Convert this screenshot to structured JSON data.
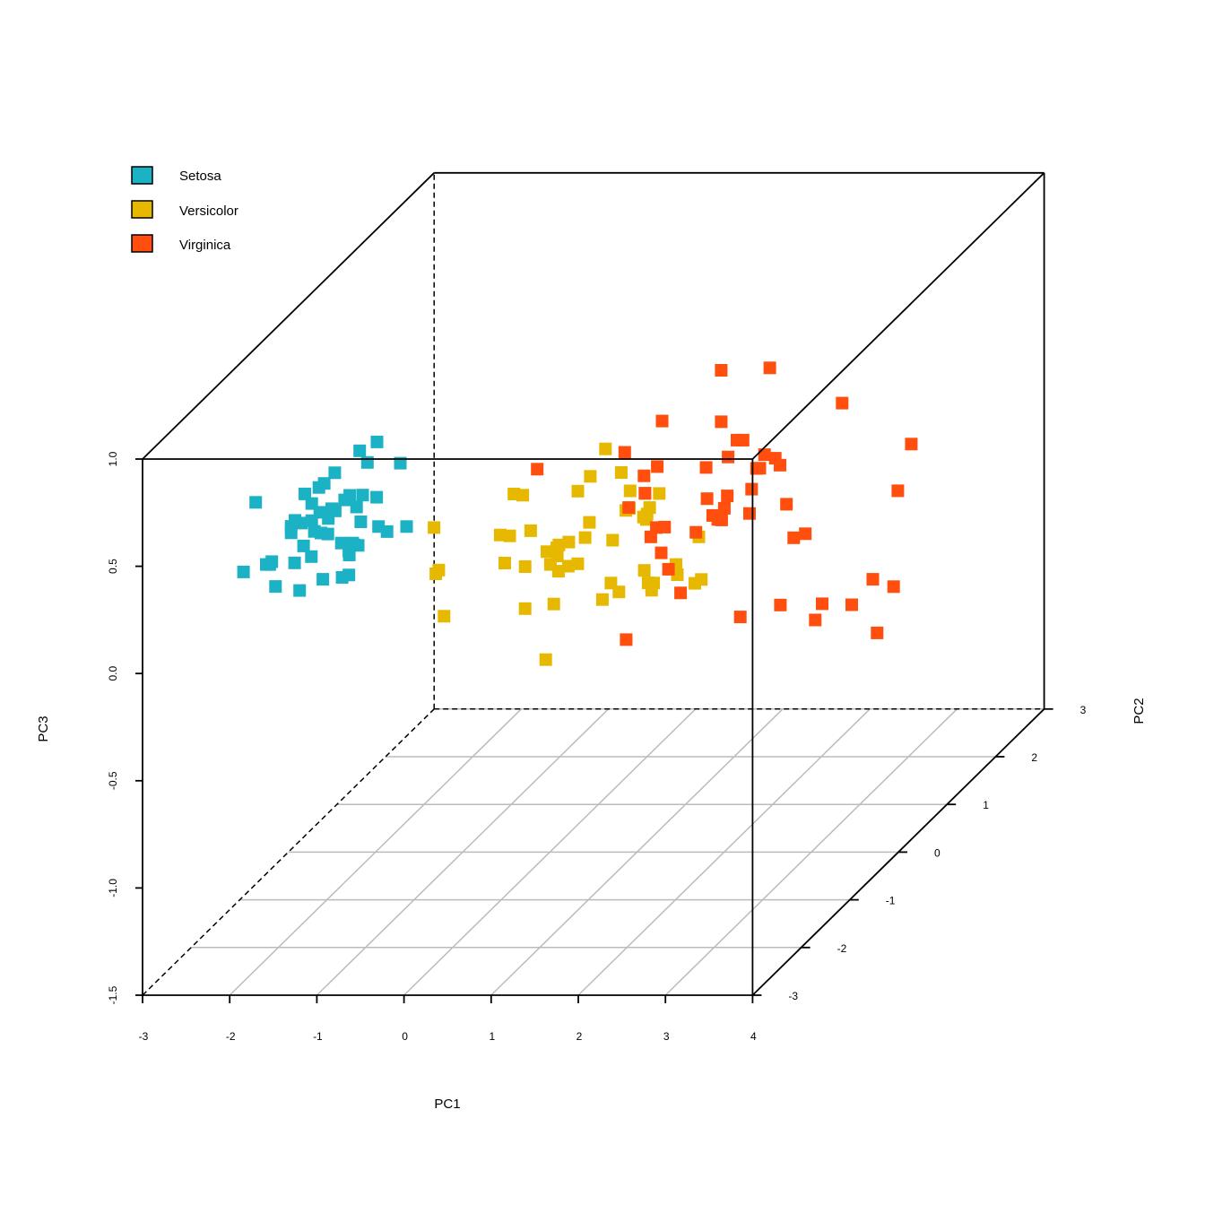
{
  "chart_data": {
    "type": "scatter",
    "projection": "3d",
    "xlabel": "PC1",
    "ylabel": "PC2",
    "zlabel": "PC3",
    "xlim": [
      -3,
      4
    ],
    "ylim": [
      -3,
      3
    ],
    "zlim": [
      -1.5,
      1.0
    ],
    "x_ticks": [
      "-3",
      "-2",
      "-1",
      "0",
      "1",
      "2",
      "3",
      "4"
    ],
    "y_ticks": [
      "-3",
      "-2",
      "-1",
      "0",
      "1",
      "2",
      "3"
    ],
    "z_ticks": [
      "-1.5",
      "-1.0",
      "-0.5",
      "0.0",
      "0.5",
      "1.0"
    ],
    "grid": "floor",
    "legend_position": "top-left",
    "series": [
      {
        "name": "Setosa",
        "color": "#1AB2C4",
        "points": [
          [
            -2.68,
            0.32,
            0.03
          ],
          [
            -2.71,
            -0.18,
            0.21
          ],
          [
            -2.89,
            -0.14,
            0.02
          ],
          [
            -2.75,
            -0.32,
            -0.08
          ],
          [
            -2.73,
            0.33,
            -0.09
          ],
          [
            -2.28,
            0.74,
            -0.17
          ],
          [
            -2.82,
            -0.09,
            -0.26
          ],
          [
            -2.63,
            0.16,
            0.02
          ],
          [
            -2.89,
            -0.58,
            -0.03
          ],
          [
            -2.67,
            -0.11,
            0.07
          ],
          [
            -2.51,
            0.65,
            0.02
          ],
          [
            -2.61,
            0.01,
            -0.23
          ],
          [
            -2.79,
            -0.24,
            0.1
          ],
          [
            -3.23,
            -0.51,
            -0.08
          ],
          [
            -2.64,
            1.18,
            0.15
          ],
          [
            -2.39,
            1.34,
            -0.28
          ],
          [
            -2.62,
            0.81,
            -0.14
          ],
          [
            -2.65,
            0.31,
            0.03
          ],
          [
            -2.2,
            0.87,
            0.12
          ],
          [
            -2.59,
            0.51,
            -0.21
          ],
          [
            -2.31,
            0.39,
            0.23
          ],
          [
            -2.54,
            0.43,
            -0.21
          ],
          [
            -3.22,
            0.13,
            -0.29
          ],
          [
            -2.3,
            0.1,
            -0.09
          ],
          [
            -2.36,
            -0.04,
            -0.21
          ],
          [
            -2.51,
            -0.14,
            0.25
          ],
          [
            -2.47,
            0.14,
            -0.09
          ],
          [
            -2.56,
            0.37,
            0.06
          ],
          [
            -2.64,
            0.31,
            0.2
          ],
          [
            -2.63,
            -0.19,
            -0.08
          ],
          [
            -2.59,
            -0.2,
            0.04
          ],
          [
            -2.41,
            0.41,
            0.28
          ],
          [
            -2.65,
            0.81,
            -0.25
          ],
          [
            -2.6,
            1.1,
            -0.09
          ],
          [
            -2.67,
            -0.11,
            0.15
          ],
          [
            -2.87,
            0.08,
            -0.09
          ],
          [
            -2.63,
            0.6,
            0.03
          ],
          [
            -2.8,
            0.27,
            0.14
          ],
          [
            -2.98,
            -0.49,
            -0.05
          ],
          [
            -2.59,
            0.23,
            0.04
          ],
          [
            -2.77,
            0.26,
            -0.07
          ],
          [
            -2.85,
            -0.94,
            0.34
          ],
          [
            -3.0,
            -0.34,
            -0.07
          ],
          [
            -2.41,
            0.19,
            -0.25
          ],
          [
            -2.21,
            0.44,
            -0.08
          ],
          [
            -2.71,
            -0.25,
            0.09
          ],
          [
            -2.54,
            0.5,
            -0.17
          ],
          [
            -2.84,
            -0.23,
            0.07
          ],
          [
            -2.54,
            0.58,
            -0.02
          ],
          [
            -2.7,
            0.11,
            0.06
          ]
        ]
      },
      {
        "name": "Versicolor",
        "color": "#E6B800",
        "points": [
          [
            1.28,
            0.69,
            -0.4
          ],
          [
            0.93,
            0.32,
            -0.02
          ],
          [
            1.46,
            0.5,
            -0.34
          ],
          [
            0.18,
            -0.83,
            -0.18
          ],
          [
            1.09,
            0.07,
            -0.26
          ],
          [
            0.64,
            -0.42,
            0.06
          ],
          [
            1.1,
            0.28,
            0.11
          ],
          [
            -0.75,
            -1.0,
            0.02
          ],
          [
            1.04,
            0.23,
            -0.33
          ],
          [
            -0.01,
            -0.72,
            0.33
          ],
          [
            -0.51,
            -1.26,
            -0.12
          ],
          [
            0.51,
            -0.1,
            0.06
          ],
          [
            0.26,
            -0.55,
            -0.48
          ],
          [
            0.98,
            -0.12,
            0.13
          ],
          [
            -0.17,
            -0.25,
            0.22
          ],
          [
            0.93,
            0.47,
            -0.35
          ],
          [
            0.66,
            -0.35,
            0.33
          ],
          [
            0.23,
            -0.33,
            -0.27
          ],
          [
            0.94,
            -0.54,
            0.5
          ],
          [
            0.04,
            -0.58,
            -0.04
          ],
          [
            1.12,
            -0.08,
            0.08
          ],
          [
            0.36,
            -0.07,
            -0.14
          ],
          [
            1.3,
            -0.33,
            0.15
          ],
          [
            0.92,
            -0.18,
            0.31
          ],
          [
            0.71,
            0.15,
            -0.32
          ],
          [
            0.9,
            0.33,
            -0.26
          ],
          [
            1.33,
            0.24,
            -0.26
          ],
          [
            1.56,
            0.27,
            -0.09
          ],
          [
            0.81,
            -0.16,
            -0.01
          ],
          [
            -0.31,
            -0.37,
            -0.07
          ],
          [
            -0.07,
            -0.7,
            0.13
          ],
          [
            -0.19,
            -0.68,
            0.13
          ],
          [
            0.14,
            -0.31,
            -0.03
          ],
          [
            1.38,
            -0.42,
            0.2
          ],
          [
            0.59,
            -0.48,
            0.29
          ],
          [
            0.81,
            0.2,
            0.14
          ],
          [
            1.22,
            0.41,
            -0.25
          ],
          [
            0.81,
            -0.37,
            -0.24
          ],
          [
            0.25,
            -0.27,
            -0.13
          ],
          [
            0.16,
            -0.68,
            0.15
          ],
          [
            0.46,
            -0.67,
            0.03
          ],
          [
            0.89,
            -0.03,
            0.1
          ],
          [
            0.23,
            -0.4,
            -0.07
          ],
          [
            -0.71,
            -1.01,
            0.04
          ],
          [
            0.36,
            -0.5,
            0.03
          ],
          [
            0.33,
            -0.21,
            -0.12
          ],
          [
            0.38,
            -0.29,
            0.01
          ],
          [
            0.64,
            0.11,
            -0.27
          ],
          [
            -0.91,
            -0.75,
            0.18
          ],
          [
            0.3,
            -0.35,
            0.01
          ]
        ]
      },
      {
        "name": "Virginica",
        "color": "#FF4E0D",
        "points": [
          [
            2.53,
            -0.01,
            0.76
          ],
          [
            1.41,
            -0.57,
            0.3
          ],
          [
            2.61,
            0.34,
            -0.11
          ],
          [
            1.97,
            -0.18,
            0.11
          ],
          [
            2.35,
            0.04,
            0.28
          ],
          [
            3.4,
            0.55,
            -0.35
          ],
          [
            0.52,
            -1.19,
            0.55
          ],
          [
            2.93,
            0.35,
            -0.42
          ],
          [
            2.32,
            -0.24,
            -0.35
          ],
          [
            2.92,
            0.78,
            0.42
          ],
          [
            1.66,
            0.24,
            0.24
          ],
          [
            1.8,
            -0.22,
            0.04
          ],
          [
            2.17,
            0.22,
            0.03
          ],
          [
            1.34,
            -0.78,
            0.28
          ],
          [
            1.59,
            -0.54,
            0.63
          ],
          [
            1.9,
            0.12,
            0.48
          ],
          [
            1.95,
            0.04,
            0.04
          ],
          [
            3.49,
            1.18,
            0.14
          ],
          [
            3.8,
            0.26,
            -0.32
          ],
          [
            1.3,
            -0.76,
            -0.34
          ],
          [
            2.43,
            0.38,
            0.22
          ],
          [
            1.2,
            -0.61,
            0.5
          ],
          [
            3.5,
            0.46,
            -0.58
          ],
          [
            1.39,
            -0.2,
            -0.06
          ],
          [
            2.28,
            0.33,
            0.28
          ],
          [
            2.62,
            0.56,
            -0.14
          ],
          [
            1.26,
            -0.18,
            0.01
          ],
          [
            1.29,
            -0.12,
            0.04
          ],
          [
            2.12,
            -0.21,
            0.15
          ],
          [
            2.39,
            0.46,
            -0.45
          ],
          [
            2.84,
            0.37,
            -0.5
          ],
          [
            3.23,
            1.37,
            -0.12
          ],
          [
            2.16,
            -0.22,
            0.21
          ],
          [
            1.44,
            -0.14,
            -0.15
          ],
          [
            1.78,
            -0.5,
            -0.18
          ],
          [
            3.08,
            0.69,
            -0.5
          ],
          [
            2.14,
            0.14,
            0.39
          ],
          [
            1.9,
            0.05,
            0.04
          ],
          [
            1.17,
            -0.16,
            0.29
          ],
          [
            2.11,
            0.37,
            0.11
          ],
          [
            2.31,
            0.18,
            0.25
          ],
          [
            1.92,
            0.41,
            0.33
          ],
          [
            1.41,
            -0.57,
            0.3
          ],
          [
            2.56,
            0.28,
            0.06
          ],
          [
            2.42,
            0.3,
            0.27
          ],
          [
            1.94,
            0.19,
            0.3
          ],
          [
            1.53,
            -0.38,
            0.1
          ],
          [
            1.76,
            0.08,
            0.13
          ],
          [
            1.9,
            0.12,
            0.72
          ],
          [
            1.39,
            -0.28,
            0.36
          ]
        ]
      }
    ]
  }
}
